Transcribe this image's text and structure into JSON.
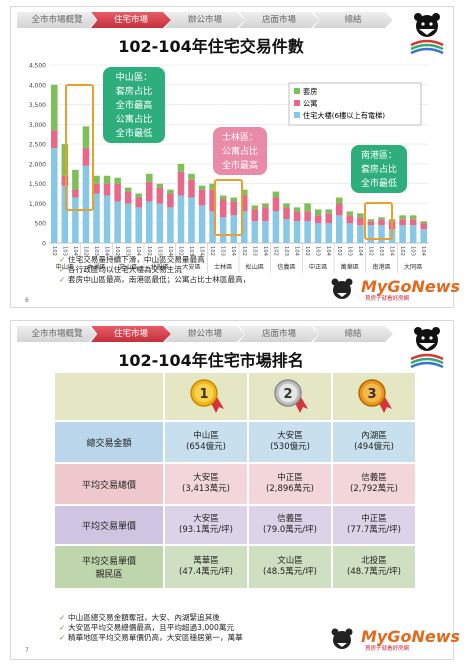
{
  "nav": [
    "全市市場概覽",
    "住宅市場",
    "辦公市場",
    "店面市場",
    "總結"
  ],
  "nav_active": 1,
  "slide1": {
    "title": "102-104年住宅交易件數",
    "page": "6",
    "callouts": {
      "zhongshan": "中山區：\n套房占比\n全市最高\n公寓占比\n全市最低",
      "shilin": "士林區：\n公寓占比\n全市最高",
      "nangang": "南港區：\n套房占比\n全市最低"
    },
    "bullets": [
      "住宅交易量持續下滑，中山區交易量最高",
      "各行政區均以住宅大樓為交易主流",
      "套房中山區最高，南港區最低；公寓占比士林區最高，"
    ]
  },
  "slide2": {
    "title": "102-104年住宅市場排名",
    "page": "7",
    "medals": [
      "1",
      "2",
      "3"
    ],
    "rows": [
      {
        "head": "總交易金額",
        "cells": [
          [
            "中山區",
            "(654億元)"
          ],
          [
            "大安區",
            "(530億元)"
          ],
          [
            "內湖區",
            "(494億元)"
          ]
        ]
      },
      {
        "head": "平均交易總價",
        "cells": [
          [
            "大安區",
            "(3,413萬元)"
          ],
          [
            "中正區",
            "(2,896萬元)"
          ],
          [
            "信義區",
            "(2,792萬元)"
          ]
        ]
      },
      {
        "head": "平均交易單價",
        "cells": [
          [
            "大安區",
            "(93.1萬元/坪)"
          ],
          [
            "信義區",
            "(79.0萬元/坪)"
          ],
          [
            "中正區",
            "(77.7萬元/坪)"
          ]
        ]
      },
      {
        "head": "平均交易單價\n親民區",
        "cells": [
          [
            "萬華區",
            "(47.4萬元/坪)"
          ],
          [
            "文山區",
            "(48.5萬元/坪)"
          ],
          [
            "北投區",
            "(48.7萬元/坪)"
          ]
        ]
      }
    ],
    "bullets": [
      "中山區總交易金額奪冠，大安、內湖緊追其後",
      "大安區平均交易總價最高，且平均超過3,000萬元",
      "精華地區平均交易單價仍高，大安區穩居第一，萬華"
    ]
  },
  "logo": {
    "text": "TAIPEI"
  },
  "watermark": {
    "text": "MyGoNews",
    "sub": "買房子就看好房網"
  },
  "colors": {
    "suite": "#7fbf5a",
    "apartment": "#e8688a",
    "building": "#86c8e6",
    "accent": "#c4303d",
    "callout": "#2fae7d",
    "callout_pink": "#e98aa8"
  },
  "chart_data": {
    "type": "bar",
    "stacked": true,
    "title": "102-104年住宅交易件數",
    "ylim": [
      0,
      4500
    ],
    "yticks": [
      "0",
      "500",
      "1,000",
      "1,500",
      "2,000",
      "2,500",
      "3,000",
      "3,500",
      "4,000",
      "4,500"
    ],
    "districts": [
      "中山區",
      "內湖區",
      "文山區",
      "北投區",
      "大安區",
      "士林區",
      "松山區",
      "信義區",
      "中正區",
      "萬華區",
      "南港區",
      "大同區"
    ],
    "years": [
      "102",
      "103",
      "104"
    ],
    "legend": [
      "套房",
      "公寓",
      "住宅大樓(6樓以上有電梯)"
    ],
    "legend_position": "top-right",
    "series": [
      {
        "name": "住宅大樓(6樓以上有電梯)",
        "values": [
          2400,
          1450,
          1150,
          1950,
          1250,
          1200,
          1050,
          1000,
          900,
          1050,
          1000,
          900,
          1200,
          1150,
          950,
          800,
          650,
          700,
          800,
          550,
          550,
          800,
          600,
          550,
          550,
          500,
          500,
          700,
          500,
          450,
          450,
          450,
          350,
          450,
          450,
          350
        ]
      },
      {
        "name": "公寓",
        "values": [
          450,
          250,
          200,
          450,
          250,
          300,
          450,
          300,
          250,
          500,
          400,
          350,
          600,
          450,
          400,
          550,
          450,
          350,
          400,
          300,
          350,
          350,
          300,
          250,
          250,
          200,
          250,
          300,
          200,
          200,
          100,
          150,
          200,
          150,
          150,
          150
        ]
      },
      {
        "name": "套房",
        "values": [
          1150,
          800,
          500,
          550,
          200,
          200,
          150,
          100,
          100,
          200,
          100,
          100,
          200,
          150,
          100,
          150,
          100,
          100,
          150,
          100,
          100,
          150,
          100,
          100,
          200,
          150,
          100,
          150,
          100,
          100,
          50,
          50,
          50,
          100,
          100,
          50
        ]
      }
    ]
  }
}
